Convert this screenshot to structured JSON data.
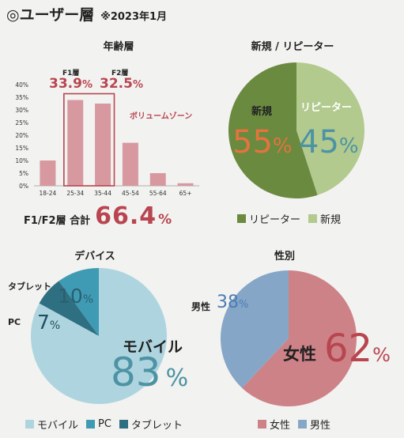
{
  "header": {
    "title": "◎ユーザー層",
    "note": "※2023年1月"
  },
  "colors": {
    "bar": "#d7999f",
    "bar_border": "#b8454f",
    "accent_red": "#b8454f",
    "green_dark": "#6a8a40",
    "green_light": "#b2ca8e",
    "orange": "#e5733c",
    "teal_text": "#4d93a4",
    "mobile": "#aed5df",
    "pc": "#3f9bb3",
    "tablet": "#2f6f82",
    "female": "#cd8287",
    "male": "#86a6c8",
    "male_text": "#4c7cb3",
    "female_text": "#b8454f"
  },
  "age_section": {
    "f1_label": "F1層",
    "f2_label": "F2層",
    "f1_value": "33.9",
    "f2_value": "32.5",
    "percent_sign": "%",
    "volume_zone_label": "ボリュームゾーン",
    "total_label": "F1/F2層 合計",
    "total_value": "66.4",
    "total_unit": "%"
  },
  "device_section": {
    "tablet_label": "タブレット",
    "pc_label": "PC",
    "tablet_value": "10",
    "pc_value": "7",
    "mobile_label": "モバイル",
    "mobile_value": "83",
    "unit": "%"
  },
  "gender_section": {
    "male_label": "男性",
    "male_value": "38",
    "male_unit": "%",
    "female_label": "女性",
    "female_value": "62",
    "female_unit": "%"
  },
  "repeater_section": {
    "new_label": "新規",
    "repeater_label": "リピーター",
    "new_value": "55",
    "repeater_value": "45",
    "unit": "%"
  },
  "chart_data": [
    {
      "type": "bar",
      "title": "年齢層",
      "categories": [
        "18-24",
        "25-34",
        "35-44",
        "45-54",
        "55-64",
        "65+"
      ],
      "values": [
        10,
        33.9,
        32.5,
        17,
        5,
        1
      ],
      "ylim": [
        0,
        40
      ],
      "yticks": [
        "0%",
        "5%",
        "10%",
        "15%",
        "20%",
        "25%",
        "30%",
        "35%",
        "40%"
      ],
      "grid": false
    },
    {
      "type": "pie",
      "title": "新規 / リピーター",
      "labels": [
        "新規",
        "リピーター"
      ],
      "values": [
        55,
        45
      ],
      "legend": [
        "リピーター",
        "新規"
      ],
      "legend_position": "bottom"
    },
    {
      "type": "pie",
      "title": "デバイス",
      "labels": [
        "モバイル",
        "PC",
        "タブレット"
      ],
      "values": [
        83,
        7,
        10
      ],
      "legend": [
        "モバイル",
        "PC",
        "タブレット"
      ],
      "legend_position": "bottom"
    },
    {
      "type": "pie",
      "title": "性別",
      "labels": [
        "女性",
        "男性"
      ],
      "values": [
        62,
        38
      ],
      "legend": [
        "女性",
        "男性"
      ],
      "legend_position": "bottom"
    }
  ]
}
